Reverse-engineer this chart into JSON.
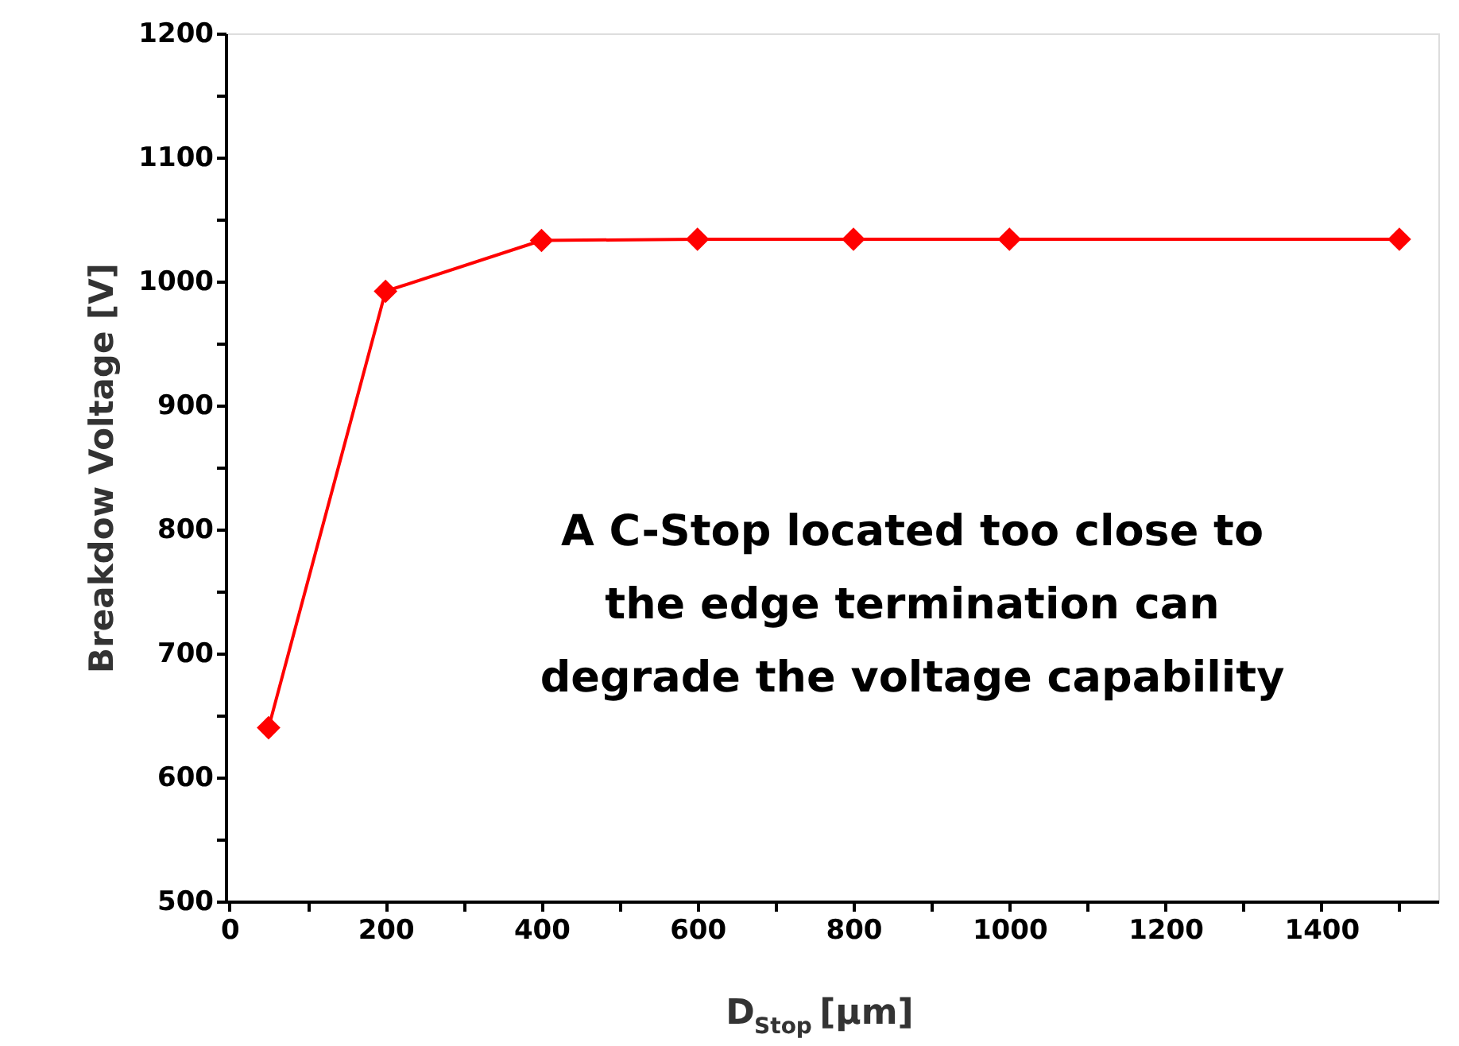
{
  "chart_data": {
    "type": "line",
    "x": [
      50,
      200,
      400,
      600,
      800,
      1000,
      1500
    ],
    "series": [
      {
        "color": "#ff0000",
        "values": [
          640,
          992,
          1033,
          1034,
          1034,
          1034,
          1034
        ]
      }
    ],
    "xlabel": "D$_{Stop}$ [μm]",
    "ylabel": "Breakdow Voltage [V]",
    "xlim": [
      -5,
      1550
    ],
    "ylim": [
      500,
      1200
    ],
    "xticks": [
      0,
      {
        "value": 100,
        "label": null
      },
      200,
      {
        "value": 300,
        "label": null
      },
      400,
      {
        "value": 500,
        "label": null
      },
      600,
      {
        "value": 700,
        "label": null
      },
      800,
      {
        "value": 900,
        "label": null
      },
      1000,
      {
        "value": 1100,
        "label": null
      },
      1200,
      {
        "value": 1300,
        "label": null
      },
      1400,
      {
        "value": 1500,
        "label": null
      }
    ],
    "yticks": [
      500,
      {
        "value": 550,
        "label": null
      },
      600,
      {
        "value": 650,
        "label": null
      },
      700,
      {
        "value": 750,
        "label": null
      },
      800,
      {
        "value": 850,
        "label": null
      },
      900,
      {
        "value": 950,
        "label": null
      },
      1000,
      {
        "value": 1050,
        "label": null
      },
      1100,
      {
        "value": 1150,
        "label": null
      },
      1200
    ],
    "marker": "diamond",
    "line_style": "solid",
    "grid": false,
    "annotations": [
      "A C-Stop located too close to\nthe edge termination can\ndegrade the voltage capability"
    ]
  }
}
